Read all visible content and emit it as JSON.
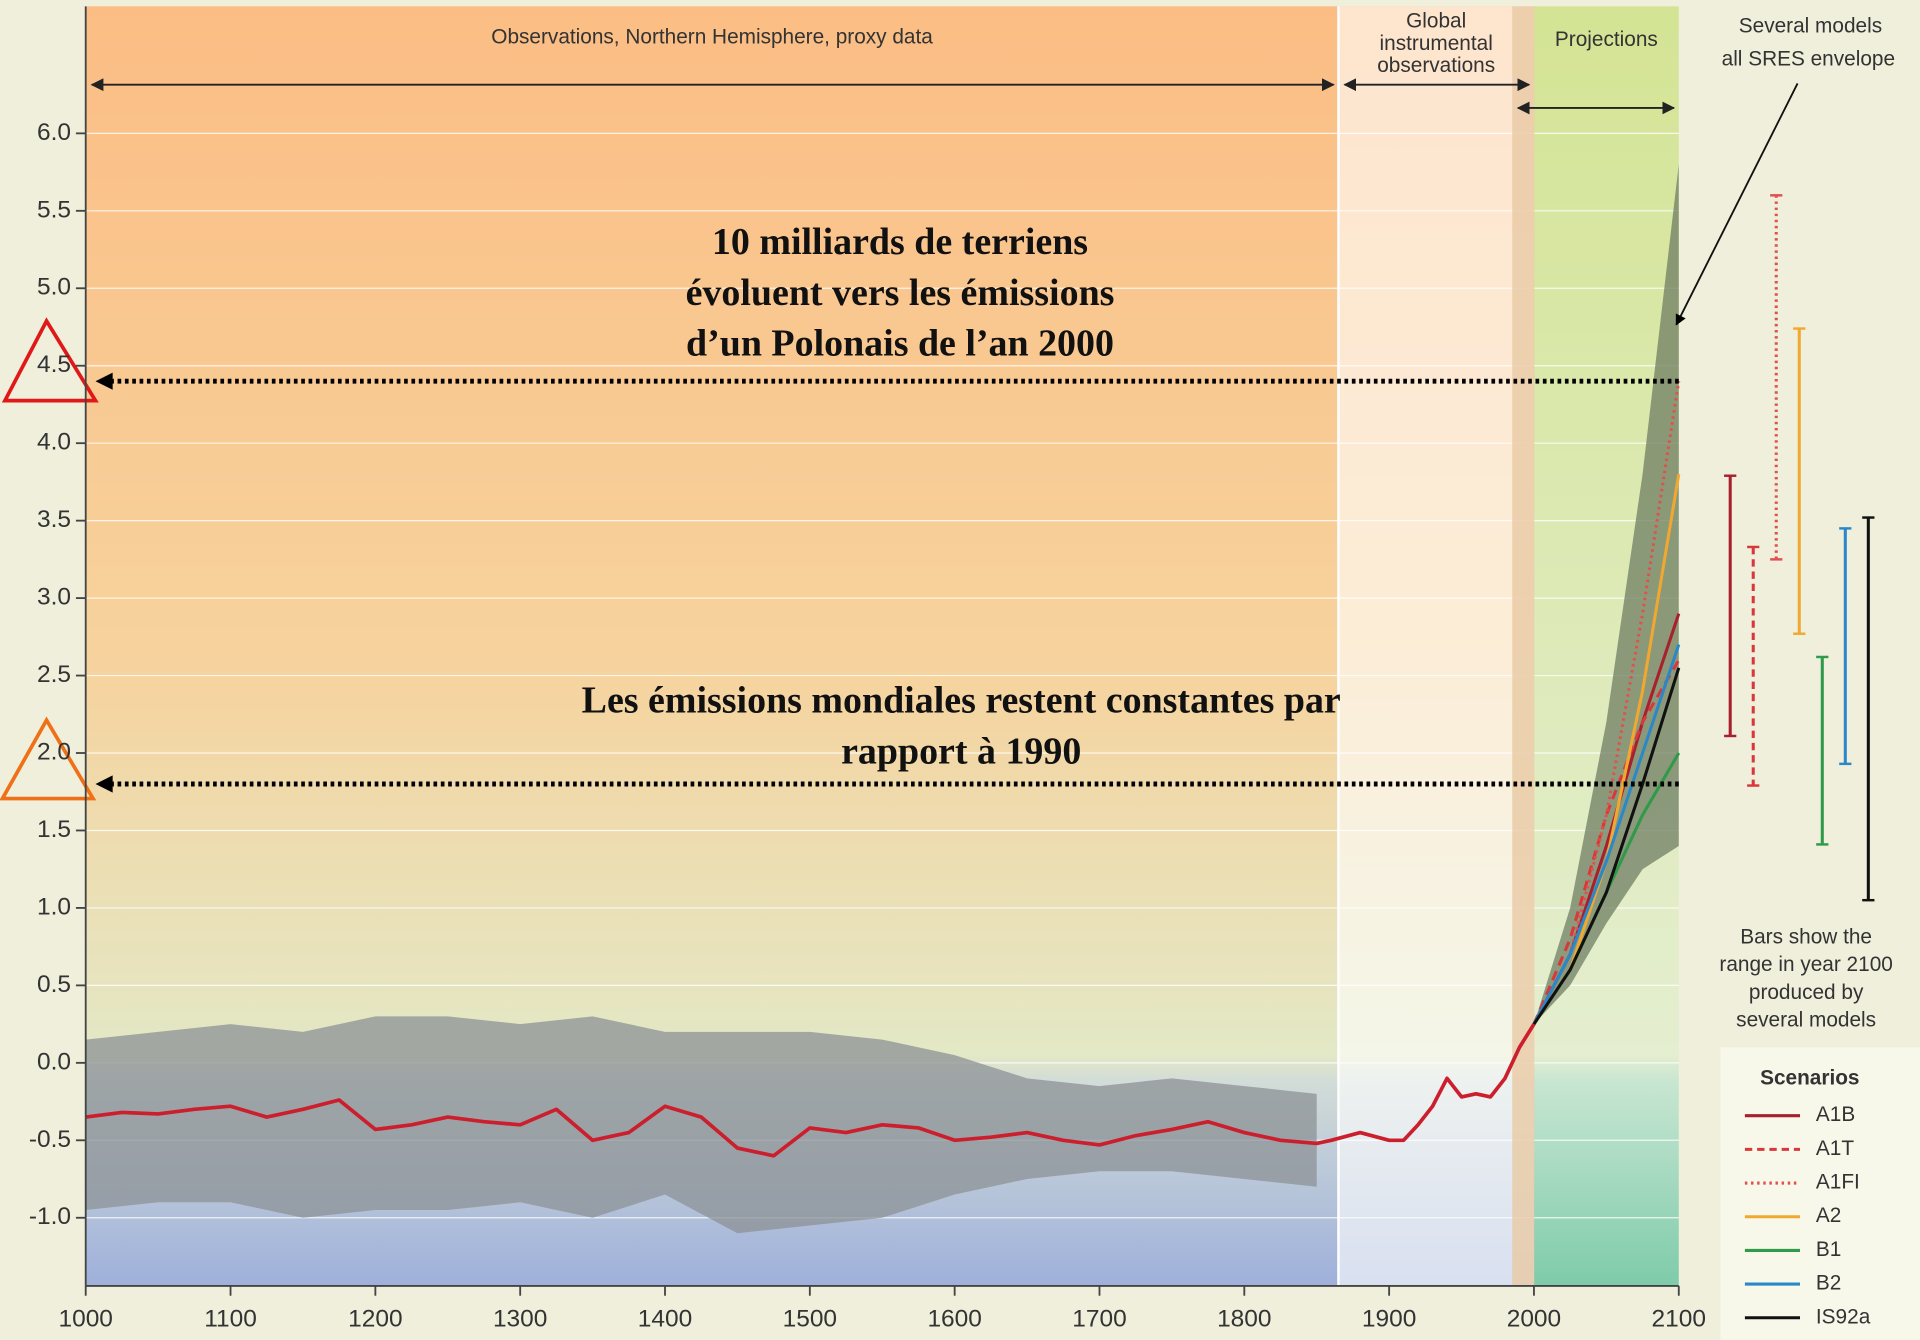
{
  "chart_data": {
    "type": "line",
    "xlim": [
      1000,
      2100
    ],
    "xticks": [
      1000,
      1100,
      1200,
      1300,
      1400,
      1500,
      1600,
      1700,
      1800,
      1900,
      2000,
      2100
    ],
    "ylim": [
      -1.44,
      6.82
    ],
    "yticks": [
      {
        "value": -1.0,
        "label": "-1.0"
      },
      -0.5,
      {
        "value": 0.0,
        "label": "0.0"
      },
      0.5,
      {
        "value": 1.0,
        "label": "1.0"
      },
      1.5,
      {
        "value": 2.0,
        "label": "2.0"
      },
      2.5,
      {
        "value": 3.0,
        "label": "3.0"
      },
      3.5,
      {
        "value": 4.0,
        "label": "4.0"
      },
      4.5,
      {
        "value": 5.0,
        "label": "5.0"
      },
      5.5,
      {
        "value": 6.0,
        "label": "6.0"
      }
    ],
    "grid": true,
    "regions": [
      {
        "label": [
          "Observations, Northern Hemisphere, proxy data"
        ],
        "start": 1000,
        "end": 1865
      },
      {
        "label": [
          "Global",
          "instrumental",
          "observations"
        ],
        "start": 1865,
        "end": 2000
      },
      {
        "label": [
          "Projections"
        ],
        "start": 2000,
        "end": 2100
      }
    ],
    "proxy_band": {
      "x": [
        1000,
        1050,
        1100,
        1150,
        1200,
        1250,
        1300,
        1350,
        1400,
        1450,
        1500,
        1550,
        1600,
        1650,
        1700,
        1750,
        1800,
        1850
      ],
      "upper": [
        0.15,
        0.2,
        0.25,
        0.2,
        0.3,
        0.3,
        0.25,
        0.3,
        0.2,
        0.2,
        0.2,
        0.15,
        0.05,
        -0.1,
        -0.15,
        -0.1,
        -0.15,
        -0.2
      ],
      "lower": [
        -0.95,
        -0.9,
        -0.9,
        -1.0,
        -0.95,
        -0.95,
        -0.9,
        -1.0,
        -0.85,
        -1.1,
        -1.05,
        -1.0,
        -0.85,
        -0.75,
        -0.7,
        -0.7,
        -0.75,
        -0.8
      ],
      "color": "#8c9196"
    },
    "envelope": {
      "x": [
        2000,
        2025,
        2050,
        2075,
        2100
      ],
      "upper": [
        0.25,
        1.0,
        2.2,
        3.8,
        5.8
      ],
      "lower": [
        0.25,
        0.5,
        0.9,
        1.25,
        1.4
      ],
      "color": "#6f7d63"
    },
    "series": [
      {
        "x": [
          1000,
          1025,
          1050,
          1075,
          1100,
          1125,
          1150,
          1175,
          1200,
          1225,
          1250,
          1275,
          1300,
          1325,
          1350,
          1375,
          1400,
          1425,
          1450,
          1475,
          1500,
          1525,
          1550,
          1575,
          1600,
          1625,
          1650,
          1675,
          1700,
          1725,
          1750,
          1775,
          1800,
          1825,
          1850,
          1860,
          1880,
          1900,
          1910,
          1920,
          1930,
          1940,
          1950,
          1960,
          1970,
          1980,
          1990,
          2000
        ],
        "values": [
          -0.35,
          -0.32,
          -0.33,
          -0.3,
          -0.28,
          -0.35,
          -0.3,
          -0.24,
          -0.43,
          -0.4,
          -0.35,
          -0.38,
          -0.4,
          -0.3,
          -0.5,
          -0.45,
          -0.28,
          -0.35,
          -0.55,
          -0.6,
          -0.42,
          -0.45,
          -0.4,
          -0.42,
          -0.5,
          -0.48,
          -0.45,
          -0.5,
          -0.53,
          -0.47,
          -0.43,
          -0.38,
          -0.45,
          -0.5,
          -0.52,
          -0.5,
          -0.45,
          -0.5,
          -0.5,
          -0.4,
          -0.28,
          -0.1,
          -0.22,
          -0.2,
          -0.22,
          -0.1,
          0.1,
          0.25
        ],
        "color": "#cc1f2d"
      }
    ],
    "scenario_title": "Scenarios",
    "scenarios": [
      {
        "name": "A1B",
        "color": "#a8202e",
        "dash": "solid",
        "x": [
          2000,
          2025,
          2050,
          2075,
          2100
        ],
        "values": [
          0.25,
          0.7,
          1.4,
          2.2,
          2.9
        ],
        "range": [
          2.11,
          3.79
        ]
      },
      {
        "name": "A1T",
        "color": "#d9383a",
        "dash": "dashed",
        "x": [
          2000,
          2025,
          2050,
          2075,
          2100
        ],
        "values": [
          0.25,
          0.8,
          1.6,
          2.2,
          2.6
        ],
        "range": [
          1.79,
          3.33
        ]
      },
      {
        "name": "A1FI",
        "color": "#e0504c",
        "dash": "dotted",
        "x": [
          2000,
          2025,
          2050,
          2075,
          2100
        ],
        "values": [
          0.25,
          0.7,
          1.6,
          2.9,
          4.4
        ],
        "range": [
          3.25,
          5.6
        ]
      },
      {
        "name": "A2",
        "color": "#f0a830",
        "dash": "solid",
        "x": [
          2000,
          2025,
          2050,
          2075,
          2100
        ],
        "values": [
          0.25,
          0.6,
          1.3,
          2.4,
          3.8
        ],
        "range": [
          2.77,
          4.74
        ]
      },
      {
        "name": "B1",
        "color": "#2e9a4a",
        "dash": "solid",
        "x": [
          2000,
          2025,
          2050,
          2075,
          2100
        ],
        "values": [
          0.25,
          0.6,
          1.1,
          1.6,
          2.0
        ],
        "range": [
          1.41,
          2.62
        ]
      },
      {
        "name": "B2",
        "color": "#2a88c8",
        "dash": "solid",
        "x": [
          2000,
          2025,
          2050,
          2075,
          2100
        ],
        "values": [
          0.25,
          0.7,
          1.3,
          2.0,
          2.7
        ],
        "range": [
          1.93,
          3.45
        ]
      },
      {
        "name": "IS92a",
        "color": "#111111",
        "dash": "solid",
        "x": [
          2000,
          2025,
          2050,
          2075,
          2100
        ],
        "values": [
          0.25,
          0.6,
          1.1,
          1.8,
          2.55
        ],
        "range": [
          1.05,
          3.52
        ]
      }
    ],
    "annotations": [
      {
        "text": [
          "10 milliards de terriens",
          "évoluent vers les émissions",
          "d’un Polonais de l’an 2000"
        ],
        "y": 4.4
      },
      {
        "text": [
          "Les émissions mondiales restent constantes par",
          "rapport à 1990"
        ],
        "y": 1.8
      }
    ],
    "envelope_note": [
      "Several models",
      "all SRES envelope"
    ],
    "bars_note": [
      "Bars show the",
      "range in year 2100",
      "produced by",
      "several models"
    ]
  }
}
